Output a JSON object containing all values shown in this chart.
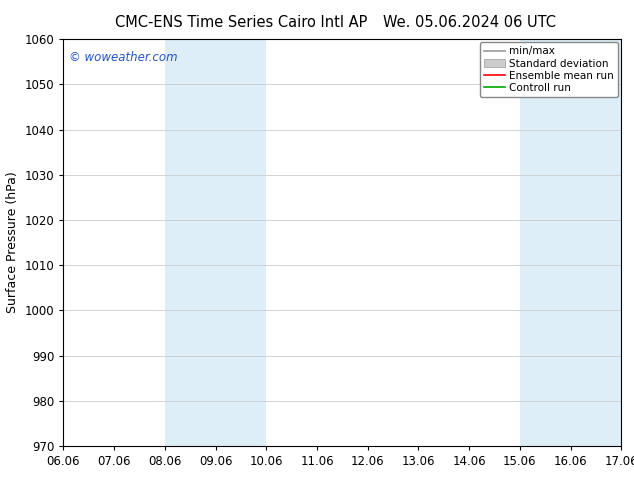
{
  "title_left": "CMC-ENS Time Series Cairo Intl AP",
  "title_right": "We. 05.06.2024 06 UTC",
  "ylabel": "Surface Pressure (hPa)",
  "ylim": [
    970,
    1060
  ],
  "yticks": [
    970,
    980,
    990,
    1000,
    1010,
    1020,
    1030,
    1040,
    1050,
    1060
  ],
  "xtick_labels": [
    "06.06",
    "07.06",
    "08.06",
    "09.06",
    "10.06",
    "11.06",
    "12.06",
    "13.06",
    "14.06",
    "15.06",
    "16.06",
    "17.06"
  ],
  "xtick_positions": [
    0,
    1,
    2,
    3,
    4,
    5,
    6,
    7,
    8,
    9,
    10,
    11
  ],
  "shaded_bands": [
    {
      "xmin": 2.0,
      "xmax": 4.0,
      "color": "#ddeef8"
    },
    {
      "xmin": 9.0,
      "xmax": 11.0,
      "color": "#ddeef8"
    }
  ],
  "watermark": "© woweather.com",
  "watermark_color": "#2255cc",
  "legend_labels": [
    "min/max",
    "Standard deviation",
    "Ensemble mean run",
    "Controll run"
  ],
  "legend_colors_line": [
    "#999999",
    "#bbbbbb",
    "#ff0000",
    "#00aa00"
  ],
  "background_color": "#ffffff",
  "plot_bg_color": "#ffffff",
  "grid_color": "#cccccc",
  "title_fontsize": 10.5,
  "axis_label_fontsize": 9,
  "tick_fontsize": 8.5
}
